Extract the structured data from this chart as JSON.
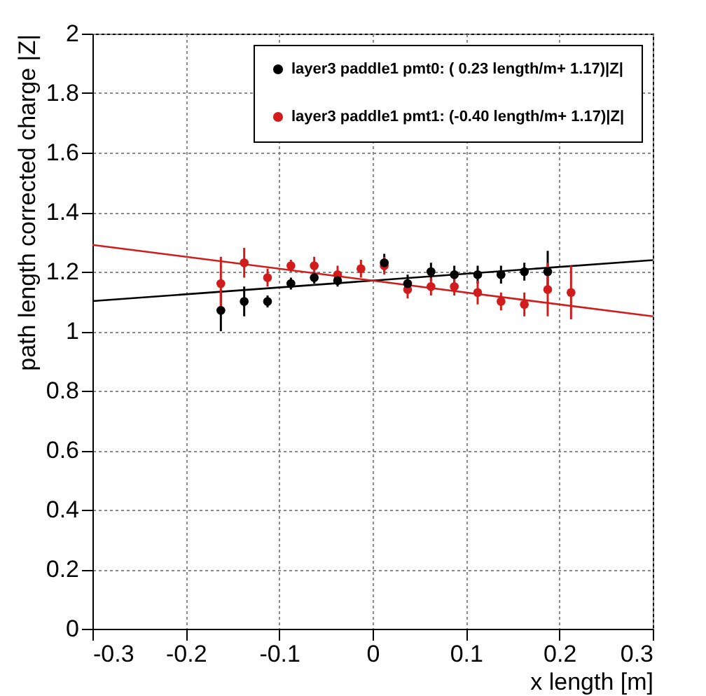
{
  "chart_data": {
    "type": "scatter",
    "xlabel": "x length [m]",
    "ylabel": "path length corrected charge |Z|",
    "x": [
      -0.1625,
      -0.1375,
      -0.1125,
      -0.0875,
      -0.0625,
      -0.0375,
      -0.0125,
      0.0125,
      0.0375,
      0.0625,
      0.0875,
      0.1125,
      0.1375,
      0.1625,
      0.1875,
      0.2125
    ],
    "series": [
      {
        "name": "layer3 paddle1 pmt0: ( 0.23 length/m+ 1.17)|Z|",
        "color": "#000000",
        "values": [
          1.07,
          1.1,
          1.1,
          1.16,
          1.18,
          1.17,
          null,
          1.23,
          1.16,
          1.2,
          1.19,
          1.19,
          1.19,
          1.2,
          1.2,
          null
        ],
        "errors": [
          0.07,
          0.05,
          0.02,
          0.02,
          0.02,
          0.02,
          null,
          0.03,
          0.03,
          0.03,
          0.03,
          0.03,
          0.03,
          0.03,
          0.07,
          null
        ]
      },
      {
        "name": "layer3 paddle1 pmt1: (-0.40 length/m+ 1.17)|Z|",
        "color": "#d01c1c",
        "values": [
          1.16,
          1.23,
          1.18,
          1.22,
          1.22,
          1.19,
          1.21,
          1.22,
          1.14,
          1.15,
          1.15,
          1.13,
          1.1,
          1.09,
          1.14,
          1.13
        ],
        "errors": [
          0.09,
          0.05,
          0.03,
          0.02,
          0.03,
          0.03,
          0.03,
          0.03,
          0.03,
          0.03,
          0.03,
          0.04,
          0.03,
          0.04,
          0.09,
          0.09
        ]
      },
      {
        "type": "line",
        "color": "#000000",
        "marker": "none",
        "x": [
          -0.3,
          0,
          0.3
        ],
        "values": [
          1.101,
          1.17,
          1.239
        ]
      },
      {
        "type": "line",
        "color": "#d01c1c",
        "marker": "none",
        "x": [
          -0.3,
          0,
          0.3
        ],
        "values": [
          1.29,
          1.17,
          1.05
        ]
      }
    ],
    "xlim": [
      -0.3,
      0.3
    ],
    "xticks": [
      -0.3,
      -0.2,
      -0.1,
      0,
      0.1,
      0.2,
      0.3
    ],
    "ylim": [
      0,
      2
    ],
    "yticks": [
      0,
      0.2,
      0.4,
      0.6,
      0.8,
      1,
      1.2,
      1.4,
      1.6,
      1.8,
      2
    ],
    "grid": true,
    "legend": "top right",
    "marker": "circle"
  }
}
